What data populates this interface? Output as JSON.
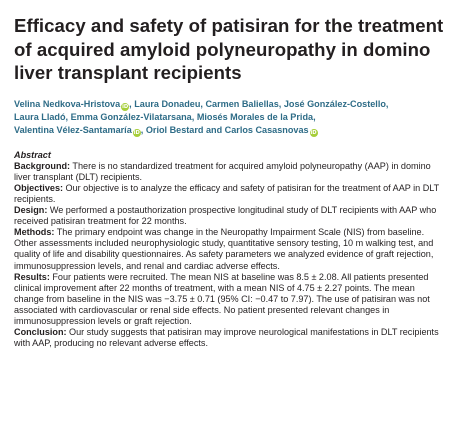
{
  "title": "Efficacy and safety of patisiran for the treatment of acquired amyloid polyneuropathy in domino liver transplant recipients",
  "authors": [
    {
      "name": "Velina Nedkova-Hristova",
      "orcid": true,
      "sep": ", "
    },
    {
      "name": "Laura Donadeu",
      "orcid": false,
      "sep": ", "
    },
    {
      "name": "Carmen Baliellas",
      "orcid": false,
      "sep": ", "
    },
    {
      "name": "José González-Costello",
      "orcid": false,
      "sep": ", "
    },
    {
      "name": "Laura Lladó",
      "orcid": false,
      "sep": ", "
    },
    {
      "name": "Emma González-Vilatarsana",
      "orcid": false,
      "sep": ", "
    },
    {
      "name": "Miosés Morales de la Prida",
      "orcid": false,
      "sep": ", "
    },
    {
      "name": "Valentina Vélez-Santamaría",
      "orcid": true,
      "sep": ", "
    },
    {
      "name": "Oriol Bestard and Carlos Casasnovas",
      "orcid": true,
      "sep": ""
    }
  ],
  "orcid_glyph": "iD",
  "abstract": {
    "heading": "Abstract",
    "sections": [
      {
        "label": "Background:",
        "text": " There is no standardized treatment for acquired amyloid polyneuropathy (AAP) in domino liver transplant (DLT) recipients."
      },
      {
        "label": "Objectives:",
        "text": " Our objective is to analyze the efficacy and safety of patisiran for the treatment of AAP in DLT recipients."
      },
      {
        "label": "Design:",
        "text": " We performed a postauthorization prospective longitudinal study of DLT recipients with AAP who received patisiran treatment for 22 months."
      },
      {
        "label": "Methods:",
        "text": " The primary endpoint was change in the Neuropathy Impairment Scale (NIS) from baseline. Other assessments included neurophysiologic study, quantitative sensory testing, 10 m walking test, and quality of life and disability questionnaires. As safety parameters we analyzed evidence of graft rejection, immunosuppression levels, and renal and cardiac adverse effects."
      },
      {
        "label": "Results:",
        "text": " Four patients were recruited. The mean NIS at baseline was 8.5 ± 2.08. All patients presented clinical improvement after 22 months of treatment, with a mean NIS of 4.75 ± 2.27 points. The mean change from baseline in the NIS was −3.75 ± 0.71 (95% CI: −0.47 to 7.97). The use of patisiran was not associated with cardiovascular or renal side effects. No patient presented relevant changes in immunosuppression levels or graft rejection."
      },
      {
        "label": "Conclusion:",
        "text": " Our study suggests that patisiran may improve neurological manifestations in DLT recipients with AAP, producing no relevant adverse effects."
      }
    ]
  }
}
